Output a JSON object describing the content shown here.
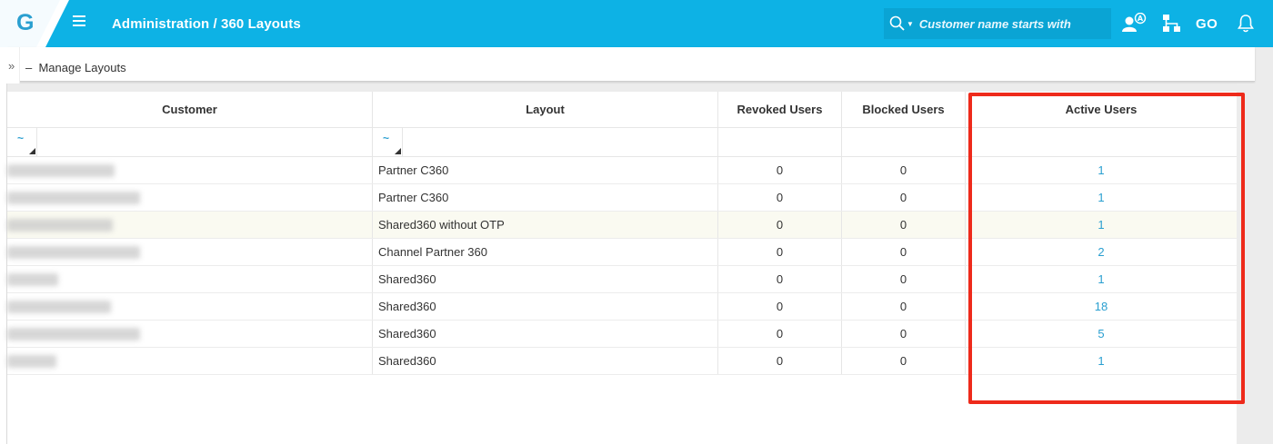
{
  "app": {
    "logo_letter": "G",
    "breadcrumb": "Administration / 360 Layouts",
    "accent_color": "#0db2e5",
    "logo_color": "#2a9fd0"
  },
  "search": {
    "placeholder": "Customer name starts with",
    "icon": "search-icon"
  },
  "toolbar": {
    "go_label": "GO",
    "icons": [
      "user-admin-icon",
      "hierarchy-icon",
      "bell-icon"
    ]
  },
  "subheader": {
    "title": "Manage Layouts",
    "expand_icon": "double-chevron-right-icon"
  },
  "table": {
    "columns": [
      "Customer",
      "Layout",
      "Revoked Users",
      "Blocked Users",
      "Active Users"
    ],
    "filter_toggle": "~",
    "rows": [
      {
        "layout": "Partner C360",
        "revoked": "0",
        "blocked": "0",
        "active": "1",
        "highlight": false
      },
      {
        "layout": "Partner C360",
        "revoked": "0",
        "blocked": "0",
        "active": "1",
        "highlight": false
      },
      {
        "layout": "Shared360 without OTP",
        "revoked": "0",
        "blocked": "0",
        "active": "1",
        "highlight": true
      },
      {
        "layout": "Channel Partner 360",
        "revoked": "0",
        "blocked": "0",
        "active": "2",
        "highlight": false
      },
      {
        "layout": "Shared360",
        "revoked": "0",
        "blocked": "0",
        "active": "1",
        "highlight": false
      },
      {
        "layout": "Shared360",
        "revoked": "0",
        "blocked": "0",
        "active": "18",
        "highlight": false
      },
      {
        "layout": "Shared360",
        "revoked": "0",
        "blocked": "0",
        "active": "5",
        "highlight": false
      },
      {
        "layout": "Shared360",
        "revoked": "0",
        "blocked": "0",
        "active": "1",
        "highlight": false
      }
    ]
  },
  "annotation": {
    "color": "#ee2a1b"
  }
}
